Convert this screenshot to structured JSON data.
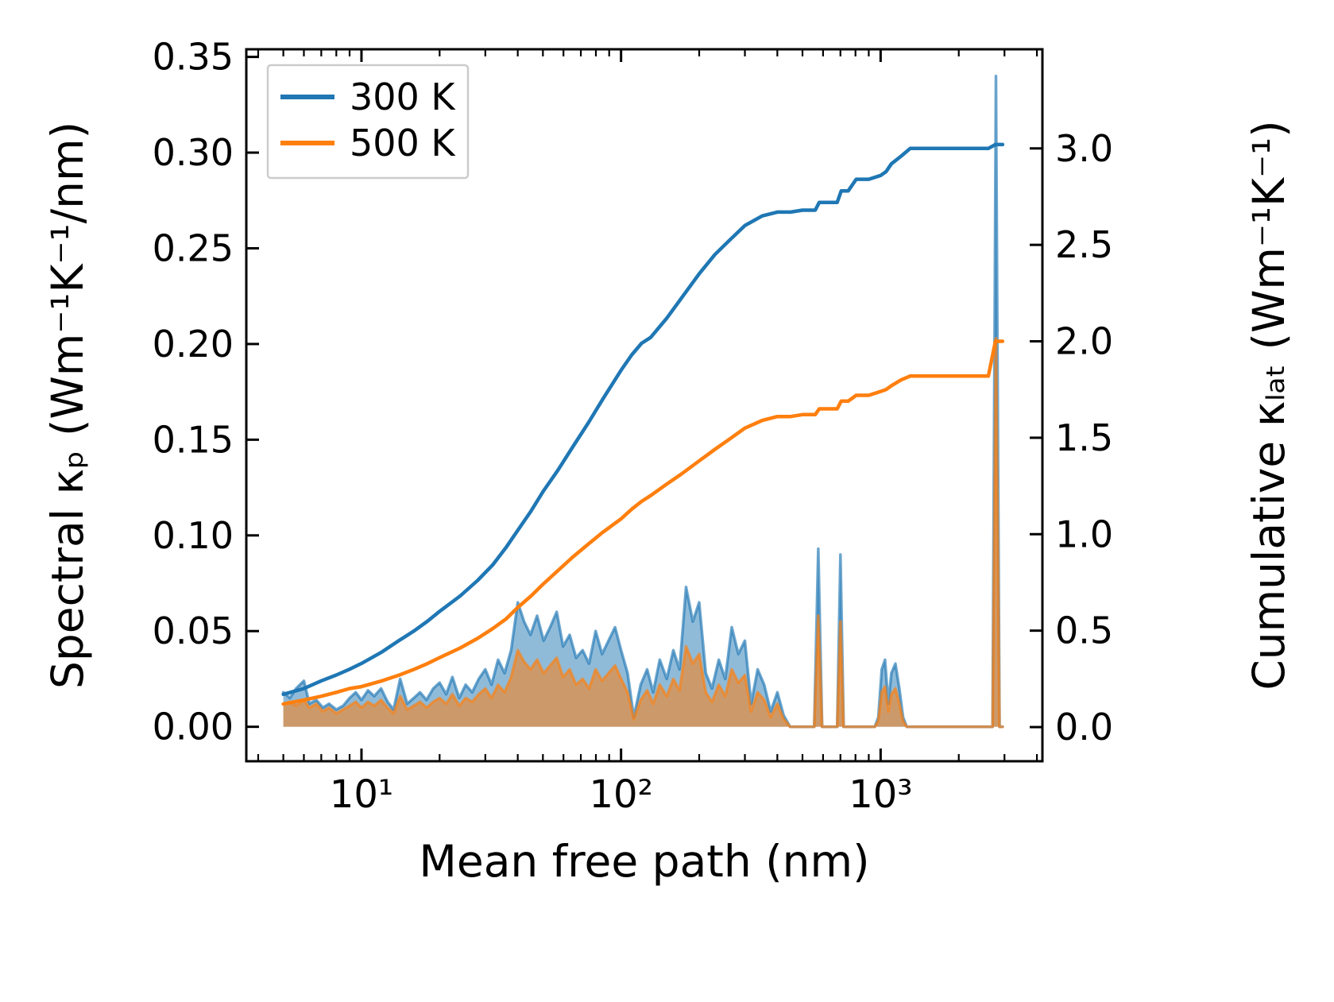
{
  "chart_data": {
    "type": "line",
    "title": "",
    "xlabel": "Mean free path (nm)",
    "ylabel_left": "Spectral κₚ (Wm⁻¹K⁻¹/nm)",
    "ylabel_right": "Cumulative κₗₐₜ (Wm⁻¹K⁻¹)",
    "x_scale": "log",
    "grid": false,
    "xlim": [
      3.6,
      4200
    ],
    "ylim_left": [
      -0.018,
      0.354
    ],
    "ylim_right": [
      -0.177,
      3.514
    ],
    "x_major_ticks": [
      {
        "v": 10,
        "label": "10¹"
      },
      {
        "v": 100,
        "label": "10²"
      },
      {
        "v": 1000,
        "label": "10³"
      }
    ],
    "x_minor_ticks": [
      4,
      5,
      6,
      7,
      8,
      9,
      20,
      30,
      40,
      50,
      60,
      70,
      80,
      90,
      200,
      300,
      400,
      500,
      600,
      700,
      800,
      900,
      2000,
      3000,
      4000
    ],
    "y_left_ticks": [
      {
        "v": 0.0,
        "label": "0.00"
      },
      {
        "v": 0.05,
        "label": "0.05"
      },
      {
        "v": 0.1,
        "label": "0.10"
      },
      {
        "v": 0.15,
        "label": "0.15"
      },
      {
        "v": 0.2,
        "label": "0.20"
      },
      {
        "v": 0.25,
        "label": "0.25"
      },
      {
        "v": 0.3,
        "label": "0.30"
      },
      {
        "v": 0.35,
        "label": "0.35"
      }
    ],
    "y_right_ticks": [
      {
        "v": 0.0,
        "label": "0.0"
      },
      {
        "v": 0.5,
        "label": "0.5"
      },
      {
        "v": 1.0,
        "label": "1.0"
      },
      {
        "v": 1.5,
        "label": "1.5"
      },
      {
        "v": 2.0,
        "label": "2.0"
      },
      {
        "v": 2.5,
        "label": "2.5"
      },
      {
        "v": 3.0,
        "label": "3.0"
      }
    ],
    "legend": {
      "position": "upper-left",
      "entries": [
        {
          "label": "300 K",
          "color": "#1f77b4"
        },
        {
          "label": "500 K",
          "color": "#ff7f0e"
        }
      ]
    },
    "colors": {
      "blue": "#1f77b4",
      "orange": "#ff7f0e",
      "legend_edge": "#cccccc",
      "spine": "#000000"
    },
    "spectral": {
      "axis": "left",
      "x": [
        5,
        5.3,
        5.6,
        6,
        6.3,
        6.7,
        7.1,
        7.5,
        8,
        8.5,
        9,
        9.5,
        10,
        10.6,
        11.2,
        11.9,
        12.6,
        13.3,
        14.1,
        15,
        15.9,
        16.8,
        17.8,
        18.9,
        20,
        21.2,
        22.4,
        23.8,
        25.2,
        26.7,
        28.3,
        30,
        31.7,
        33.6,
        35.6,
        37.7,
        40,
        42.3,
        44.8,
        47.5,
        50.3,
        53.3,
        56.5,
        59.8,
        63.4,
        67.1,
        71.1,
        75.3,
        79.8,
        84.5,
        89.5,
        94.8,
        100,
        106,
        112,
        119,
        126,
        133,
        141,
        150,
        159,
        168,
        178,
        189,
        200,
        212,
        224,
        238,
        252,
        267,
        283,
        300,
        317,
        336,
        356,
        377,
        400,
        423,
        448,
        475,
        503,
        533,
        555,
        575,
        595,
        620,
        650,
        680,
        700,
        720,
        745,
        800,
        850,
        900,
        950,
        980,
        1010,
        1040,
        1070,
        1100,
        1140,
        1180,
        1220,
        1260,
        1350,
        1500,
        1700,
        1900,
        2100,
        2300,
        2500,
        2650,
        2700,
        2780,
        2870,
        2950
      ],
      "series": [
        {
          "name": "300 K",
          "color": "#1f77b4",
          "values": [
            0.018,
            0.015,
            0.02,
            0.024,
            0.012,
            0.014,
            0.01,
            0.012,
            0.009,
            0.011,
            0.015,
            0.018,
            0.014,
            0.019,
            0.016,
            0.02,
            0.013,
            0.009,
            0.025,
            0.012,
            0.015,
            0.018,
            0.014,
            0.02,
            0.023,
            0.017,
            0.026,
            0.015,
            0.022,
            0.018,
            0.025,
            0.03,
            0.022,
            0.035,
            0.028,
            0.04,
            0.065,
            0.055,
            0.048,
            0.058,
            0.045,
            0.052,
            0.06,
            0.042,
            0.048,
            0.036,
            0.04,
            0.033,
            0.05,
            0.038,
            0.045,
            0.052,
            0.04,
            0.028,
            0.005,
            0.022,
            0.03,
            0.018,
            0.035,
            0.025,
            0.04,
            0.03,
            0.073,
            0.055,
            0.065,
            0.028,
            0.02,
            0.035,
            0.025,
            0.052,
            0.038,
            0.045,
            0.012,
            0.03,
            0.022,
            0.008,
            0.018,
            0.006,
            0.0,
            0.0,
            0.0,
            0.0,
            0.0,
            0.093,
            0.0,
            0.0,
            0.0,
            0.0,
            0.09,
            0.0,
            0.0,
            0.0,
            0.0,
            0.0,
            0.0,
            0.005,
            0.03,
            0.035,
            0.012,
            0.028,
            0.033,
            0.02,
            0.005,
            0.0,
            0.0,
            0.0,
            0.0,
            0.0,
            0.0,
            0.0,
            0.0,
            0.0,
            0.0,
            0.34,
            0.0,
            0.0
          ]
        },
        {
          "name": "500 K",
          "color": "#ff7f0e",
          "values": [
            0.012,
            0.013,
            0.011,
            0.014,
            0.01,
            0.012,
            0.008,
            0.01,
            0.007,
            0.009,
            0.011,
            0.013,
            0.01,
            0.013,
            0.011,
            0.014,
            0.01,
            0.007,
            0.016,
            0.009,
            0.011,
            0.013,
            0.01,
            0.013,
            0.015,
            0.012,
            0.017,
            0.011,
            0.015,
            0.013,
            0.017,
            0.02,
            0.015,
            0.022,
            0.018,
            0.026,
            0.04,
            0.034,
            0.03,
            0.035,
            0.028,
            0.032,
            0.036,
            0.026,
            0.03,
            0.022,
            0.025,
            0.02,
            0.03,
            0.024,
            0.028,
            0.032,
            0.025,
            0.018,
            0.004,
            0.014,
            0.019,
            0.012,
            0.022,
            0.016,
            0.025,
            0.019,
            0.042,
            0.033,
            0.038,
            0.018,
            0.013,
            0.022,
            0.016,
            0.03,
            0.023,
            0.027,
            0.008,
            0.018,
            0.014,
            0.005,
            0.012,
            0.004,
            0.0,
            0.0,
            0.0,
            0.0,
            0.0,
            0.058,
            0.0,
            0.0,
            0.0,
            0.0,
            0.055,
            0.0,
            0.0,
            0.0,
            0.0,
            0.0,
            0.0,
            0.003,
            0.018,
            0.021,
            0.008,
            0.017,
            0.02,
            0.012,
            0.003,
            0.0,
            0.0,
            0.0,
            0.0,
            0.0,
            0.0,
            0.0,
            0.0,
            0.0,
            0.0,
            0.203,
            0.0,
            0.0
          ]
        }
      ]
    },
    "cumulative": {
      "axis": "right",
      "x": [
        5,
        6,
        7,
        8,
        9,
        10,
        12,
        14,
        16,
        18,
        20,
        24,
        28,
        32,
        36,
        40,
        45,
        50,
        57,
        65,
        75,
        85,
        100,
        110,
        120,
        130,
        150,
        170,
        200,
        230,
        260,
        300,
        350,
        400,
        450,
        500,
        560,
        580,
        620,
        680,
        705,
        750,
        805,
        900,
        1000,
        1050,
        1100,
        1200,
        1300,
        1400,
        1800,
        2200,
        2600,
        2770,
        2950
      ],
      "series": [
        {
          "name": "300 K",
          "color": "#1f77b4",
          "values": [
            0.17,
            0.2,
            0.24,
            0.27,
            0.3,
            0.33,
            0.39,
            0.45,
            0.5,
            0.55,
            0.6,
            0.68,
            0.76,
            0.84,
            0.93,
            1.02,
            1.12,
            1.22,
            1.33,
            1.45,
            1.58,
            1.7,
            1.85,
            1.93,
            1.99,
            2.02,
            2.12,
            2.22,
            2.35,
            2.45,
            2.52,
            2.6,
            2.65,
            2.67,
            2.67,
            2.68,
            2.68,
            2.72,
            2.72,
            2.72,
            2.78,
            2.78,
            2.84,
            2.84,
            2.86,
            2.88,
            2.92,
            2.96,
            3.0,
            3.0,
            3.0,
            3.0,
            3.0,
            3.02,
            3.02
          ]
        },
        {
          "name": "500 K",
          "color": "#ff7f0e",
          "values": [
            0.12,
            0.14,
            0.16,
            0.18,
            0.2,
            0.21,
            0.24,
            0.27,
            0.3,
            0.33,
            0.36,
            0.41,
            0.46,
            0.51,
            0.56,
            0.62,
            0.68,
            0.74,
            0.81,
            0.88,
            0.95,
            1.01,
            1.08,
            1.13,
            1.17,
            1.2,
            1.26,
            1.31,
            1.38,
            1.44,
            1.49,
            1.55,
            1.59,
            1.61,
            1.61,
            1.62,
            1.62,
            1.65,
            1.65,
            1.65,
            1.69,
            1.69,
            1.72,
            1.72,
            1.74,
            1.75,
            1.77,
            1.8,
            1.82,
            1.82,
            1.82,
            1.82,
            1.82,
            2.0,
            2.0
          ]
        }
      ]
    }
  }
}
